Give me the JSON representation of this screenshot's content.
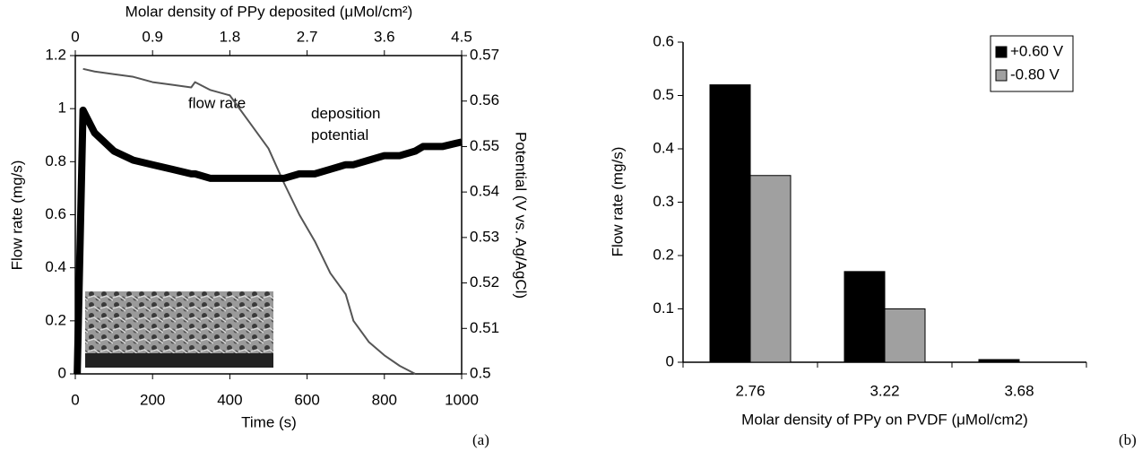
{
  "chart_data": [
    {
      "type": "line",
      "title": "Molar density of PPy deposited (μMol/cm²)",
      "xlabel": "Time (s)",
      "ylabel": "Flow rate (mg/s)",
      "y2label": "Potential (V vs. Ag/AgCl)",
      "panel_label": "(a)",
      "annotations": [
        "flow rate",
        "deposition potential"
      ],
      "x": [
        5,
        20,
        50,
        100,
        150,
        200,
        250,
        300,
        310,
        350,
        400,
        450,
        500,
        540,
        580,
        620,
        660,
        700,
        720,
        760,
        800,
        840,
        880,
        900,
        950,
        1000
      ],
      "series": [
        {
          "name": "flow rate",
          "color": "#555555",
          "values": [
            null,
            1.15,
            1.14,
            1.13,
            1.12,
            1.1,
            1.09,
            1.08,
            1.1,
            1.07,
            1.05,
            0.95,
            0.85,
            0.72,
            0.6,
            0.5,
            0.38,
            0.3,
            0.2,
            0.12,
            0.07,
            0.03,
            0.0,
            null,
            null,
            null
          ]
        },
        {
          "name": "deposition potential",
          "color": "#000000",
          "axis": "y2",
          "values": [
            0.5,
            0.558,
            0.553,
            0.549,
            0.547,
            0.546,
            0.545,
            0.544,
            0.544,
            0.543,
            0.543,
            0.543,
            0.543,
            0.543,
            0.544,
            0.544,
            0.545,
            0.546,
            0.546,
            0.547,
            0.548,
            0.548,
            0.549,
            0.55,
            0.55,
            0.551
          ]
        }
      ],
      "xlim": [
        0,
        1000
      ],
      "xticks": [
        0,
        200,
        400,
        600,
        800,
        1000
      ],
      "x2lim": [
        0,
        4.5
      ],
      "x2ticks": [
        0,
        0.9,
        1.8,
        2.7,
        3.6,
        4.5
      ],
      "ylim": [
        0,
        1.2
      ],
      "yticks": [
        0,
        0.2,
        0.4,
        0.6,
        0.8,
        1,
        1.2
      ],
      "y2lim": [
        0.5,
        0.57
      ],
      "y2ticks": [
        0.5,
        0.51,
        0.52,
        0.53,
        0.54,
        0.55,
        0.56,
        0.57
      ]
    },
    {
      "type": "bar",
      "xlabel": "Molar density of PPy on PVDF (μMol/cm2)",
      "ylabel": "Flow rate (mg/s)",
      "panel_label": "(b)",
      "categories": [
        "2.76",
        "3.22",
        "3.68"
      ],
      "series": [
        {
          "name": "+0.60 V",
          "color": "#000000",
          "values": [
            0.52,
            0.17,
            0.005
          ]
        },
        {
          "name": "-0.80 V",
          "color": "#a0a0a0",
          "values": [
            0.35,
            0.1,
            0
          ]
        }
      ],
      "ylim": [
        0,
        0.6
      ],
      "yticks": [
        0,
        0.1,
        0.2,
        0.3,
        0.4,
        0.5,
        0.6
      ],
      "legend": "top-right"
    }
  ]
}
